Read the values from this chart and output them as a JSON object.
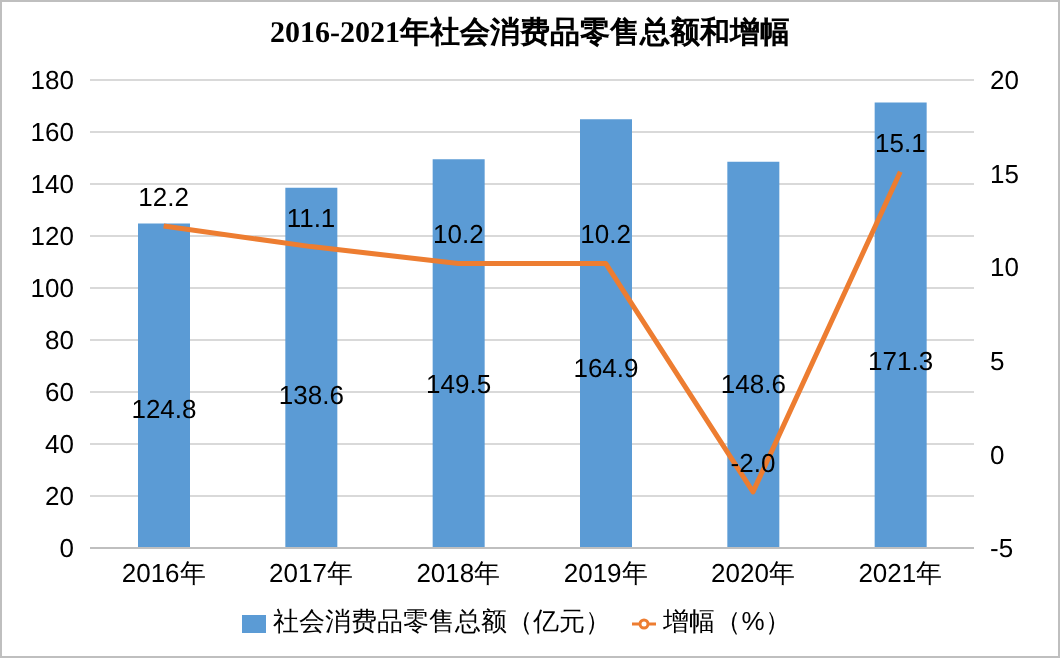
{
  "chart_data": {
    "type": "bar",
    "title": "2016-2021年社会消费品零售总额和增幅",
    "categories": [
      "2016年",
      "2017年",
      "2018年",
      "2019年",
      "2020年",
      "2021年"
    ],
    "series": [
      {
        "name": "社会消费品零售总额（亿元）",
        "color": "#5b9bd5",
        "values": [
          124.8,
          138.6,
          149.5,
          164.9,
          148.6,
          171.3
        ],
        "value_labels": [
          "124.8",
          "138.6",
          "149.5",
          "164.9",
          "148.6",
          "171.3"
        ]
      },
      {
        "name": "增幅（%）",
        "type": "line",
        "axis": "y2",
        "color": "#ed7d31",
        "values": [
          12.2,
          11.1,
          10.2,
          10.2,
          -2.0,
          15.1
        ],
        "value_labels": [
          "12.2",
          "11.1",
          "10.2",
          "10.2",
          "-2.0",
          "15.1"
        ]
      }
    ],
    "ylim": [
      0,
      180
    ],
    "yticks": [
      0,
      20,
      40,
      60,
      80,
      100,
      120,
      140,
      160,
      180
    ],
    "y2lim": [
      -5,
      20
    ],
    "y2ticks": [
      -5,
      0,
      5,
      10,
      15,
      20
    ],
    "grid": "y",
    "legend": "bottom",
    "marker": "none",
    "line_style": "solid"
  }
}
